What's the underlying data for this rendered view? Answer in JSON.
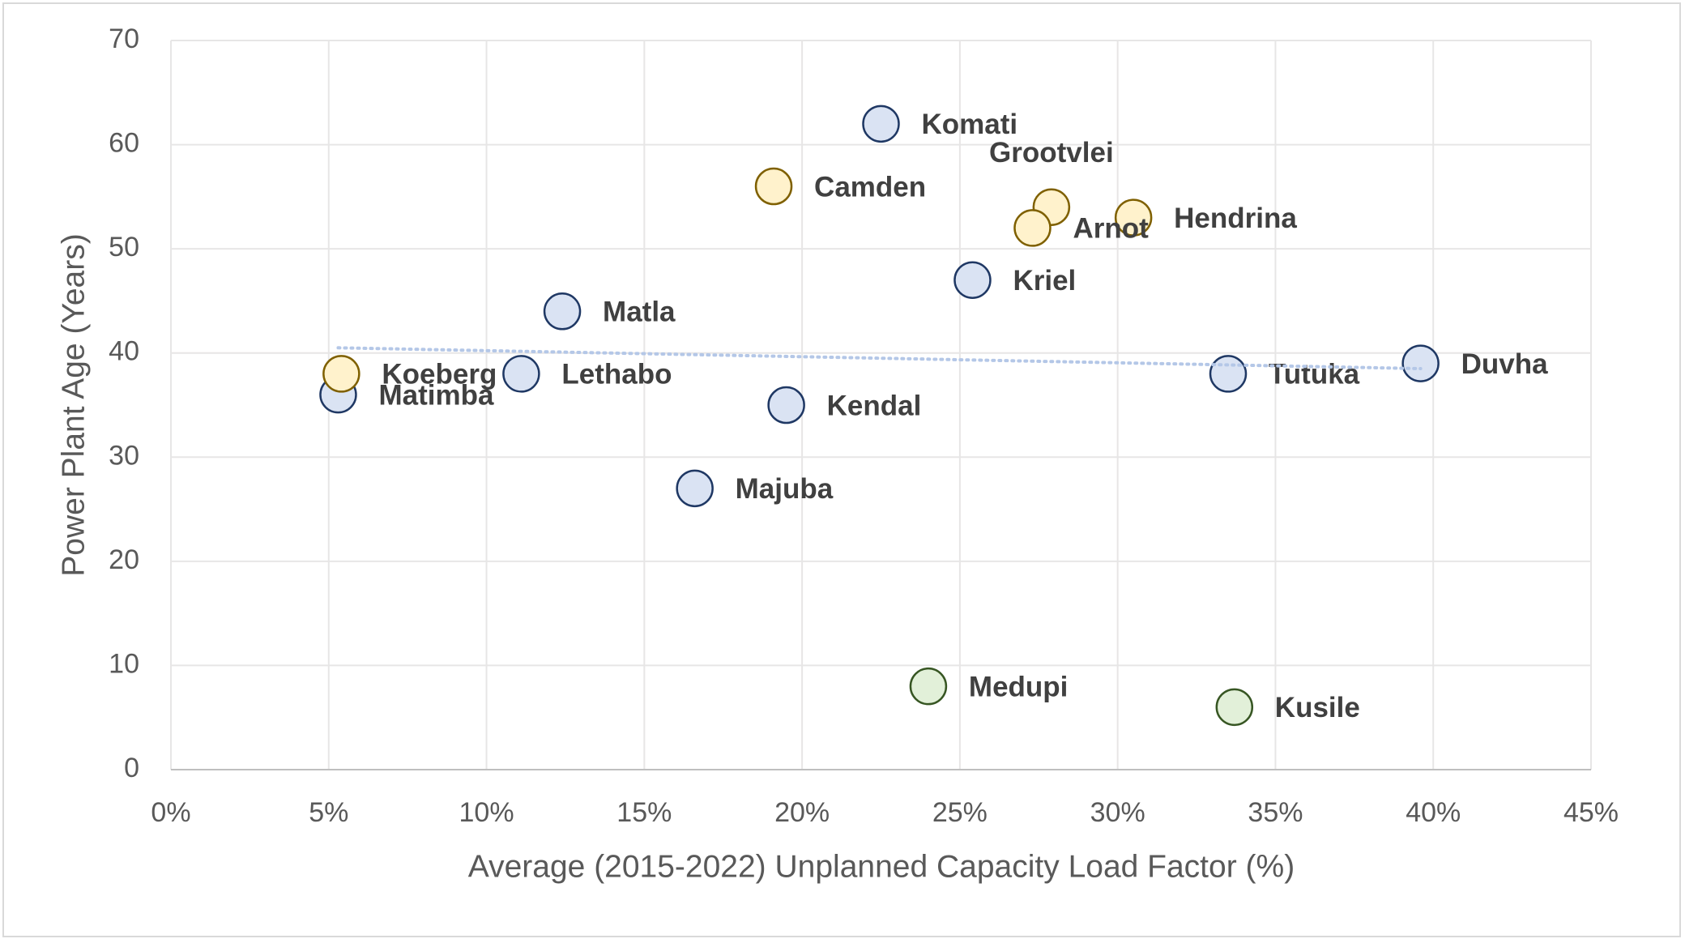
{
  "chart_data": {
    "type": "scatter",
    "x_label": "Average (2015-2022) Unplanned Capacity Load Factor (%)",
    "y_label": "Power Plant Age (Years)",
    "xlim": [
      0,
      45
    ],
    "ylim": [
      0,
      70
    ],
    "xticks": [
      {
        "value": 0,
        "label": "0%"
      },
      {
        "value": 5,
        "label": "5%"
      },
      {
        "value": 10,
        "label": "10%"
      },
      {
        "value": 15,
        "label": "15%"
      },
      {
        "value": 20,
        "label": "20%"
      },
      {
        "value": 25,
        "label": "25%"
      },
      {
        "value": 30,
        "label": "30%"
      },
      {
        "value": 35,
        "label": "35%"
      },
      {
        "value": 40,
        "label": "40%"
      },
      {
        "value": 45,
        "label": "45%"
      }
    ],
    "yticks": [
      0,
      10,
      20,
      30,
      40,
      50,
      60,
      70
    ],
    "grid": true,
    "series": [
      {
        "color": "#dae3f3",
        "edge_color": "#1f3864",
        "labels": [
          "Komati",
          "Kriel",
          "Matla",
          "Matimba",
          "Lethabo",
          "Kendal",
          "Majuba",
          "Tutuka",
          "Duvha"
        ],
        "x": [
          22.5,
          25.4,
          12.4,
          5.3,
          11.1,
          19.5,
          16.6,
          33.5,
          39.6
        ],
        "values": [
          62,
          47,
          44,
          36,
          38,
          35,
          27,
          38,
          39
        ]
      },
      {
        "color": "#fff2cc",
        "edge_color": "#7f6000",
        "labels": [
          "Camden",
          "Grootvlei",
          "Arnot",
          "Hendrina",
          "Koeberg"
        ],
        "x": [
          19.1,
          27.9,
          27.3,
          30.5,
          5.4
        ],
        "values": [
          56,
          54,
          52,
          53,
          38
        ]
      },
      {
        "color": "#e2f0d9",
        "edge_color": "#375623",
        "labels": [
          "Medupi",
          "Kusile"
        ],
        "x": [
          24.0,
          33.7
        ],
        "values": [
          8,
          6
        ]
      }
    ],
    "trendline": {
      "color": "#b4c7e7",
      "x": [
        5.3,
        39.6
      ],
      "values": [
        40.5,
        38.5
      ]
    }
  }
}
